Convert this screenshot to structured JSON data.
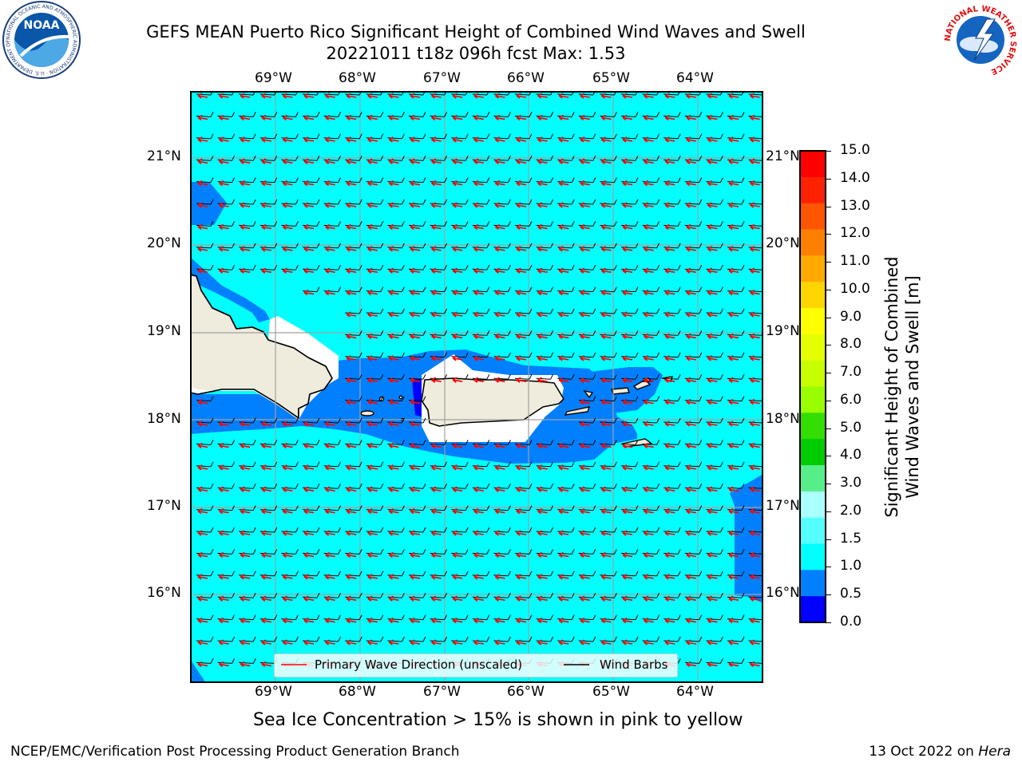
{
  "title": {
    "line1": "GEFS MEAN Puerto Rico Significant Height of Combined Wind Waves and Swell",
    "line2": "20221011 t18z 096h fcst   Max: 1.53"
  },
  "map": {
    "lon_labels": [
      "69°W",
      "68°W",
      "67°W",
      "66°W",
      "65°W",
      "64°W"
    ],
    "lat_labels": [
      "21°N",
      "20°N",
      "19°N",
      "18°N",
      "17°N",
      "16°N"
    ],
    "background_color": "#00ffff"
  },
  "colorbar": {
    "label": "Significant Height of Combined Wind Waves and Swell [m]",
    "label_line1": "Significant Height of Combined",
    "label_line2": "Wind Waves and Swell [m]",
    "ticks": [
      "15.0",
      "14.0",
      "13.0",
      "12.0",
      "11.0",
      "10.0",
      "9.0",
      "8.0",
      "7.0",
      "6.0",
      "5.0",
      "4.0",
      "3.0",
      "2.0",
      "1.5",
      "1.0",
      "0.5",
      "0.0"
    ],
    "colors": [
      "#ff0000",
      "#ff2200",
      "#ff5500",
      "#ff8000",
      "#ffaa00",
      "#ffd500",
      "#ffff00",
      "#e6ff00",
      "#c8ff00",
      "#99ff00",
      "#33dd00",
      "#00cc00",
      "#55ee88",
      "#aaffff",
      "#55ffff",
      "#00ffff",
      "#0080ff",
      "#0000ff"
    ]
  },
  "legend": {
    "wave_direction": "Primary Wave Direction (unscaled)",
    "wind_barbs": "Wind Barbs"
  },
  "subtitle": "Sea Ice Concentration > 15% is shown in pink to yellow",
  "footer": {
    "left": "NCEP/EMC/Verification Post Processing Product Generation Branch",
    "right_date": "13 Oct 2022 on ",
    "right_machine": "Hera"
  },
  "logos": {
    "noaa_text": "NOAA",
    "noaa_ring": "NATIONAL OCEANIC AND ATMOSPHERIC ADMINISTRATION · U.S. DEPARTMENT OF COMMERCE",
    "nws_ring": "NATIONAL WEATHER SERVICE"
  }
}
